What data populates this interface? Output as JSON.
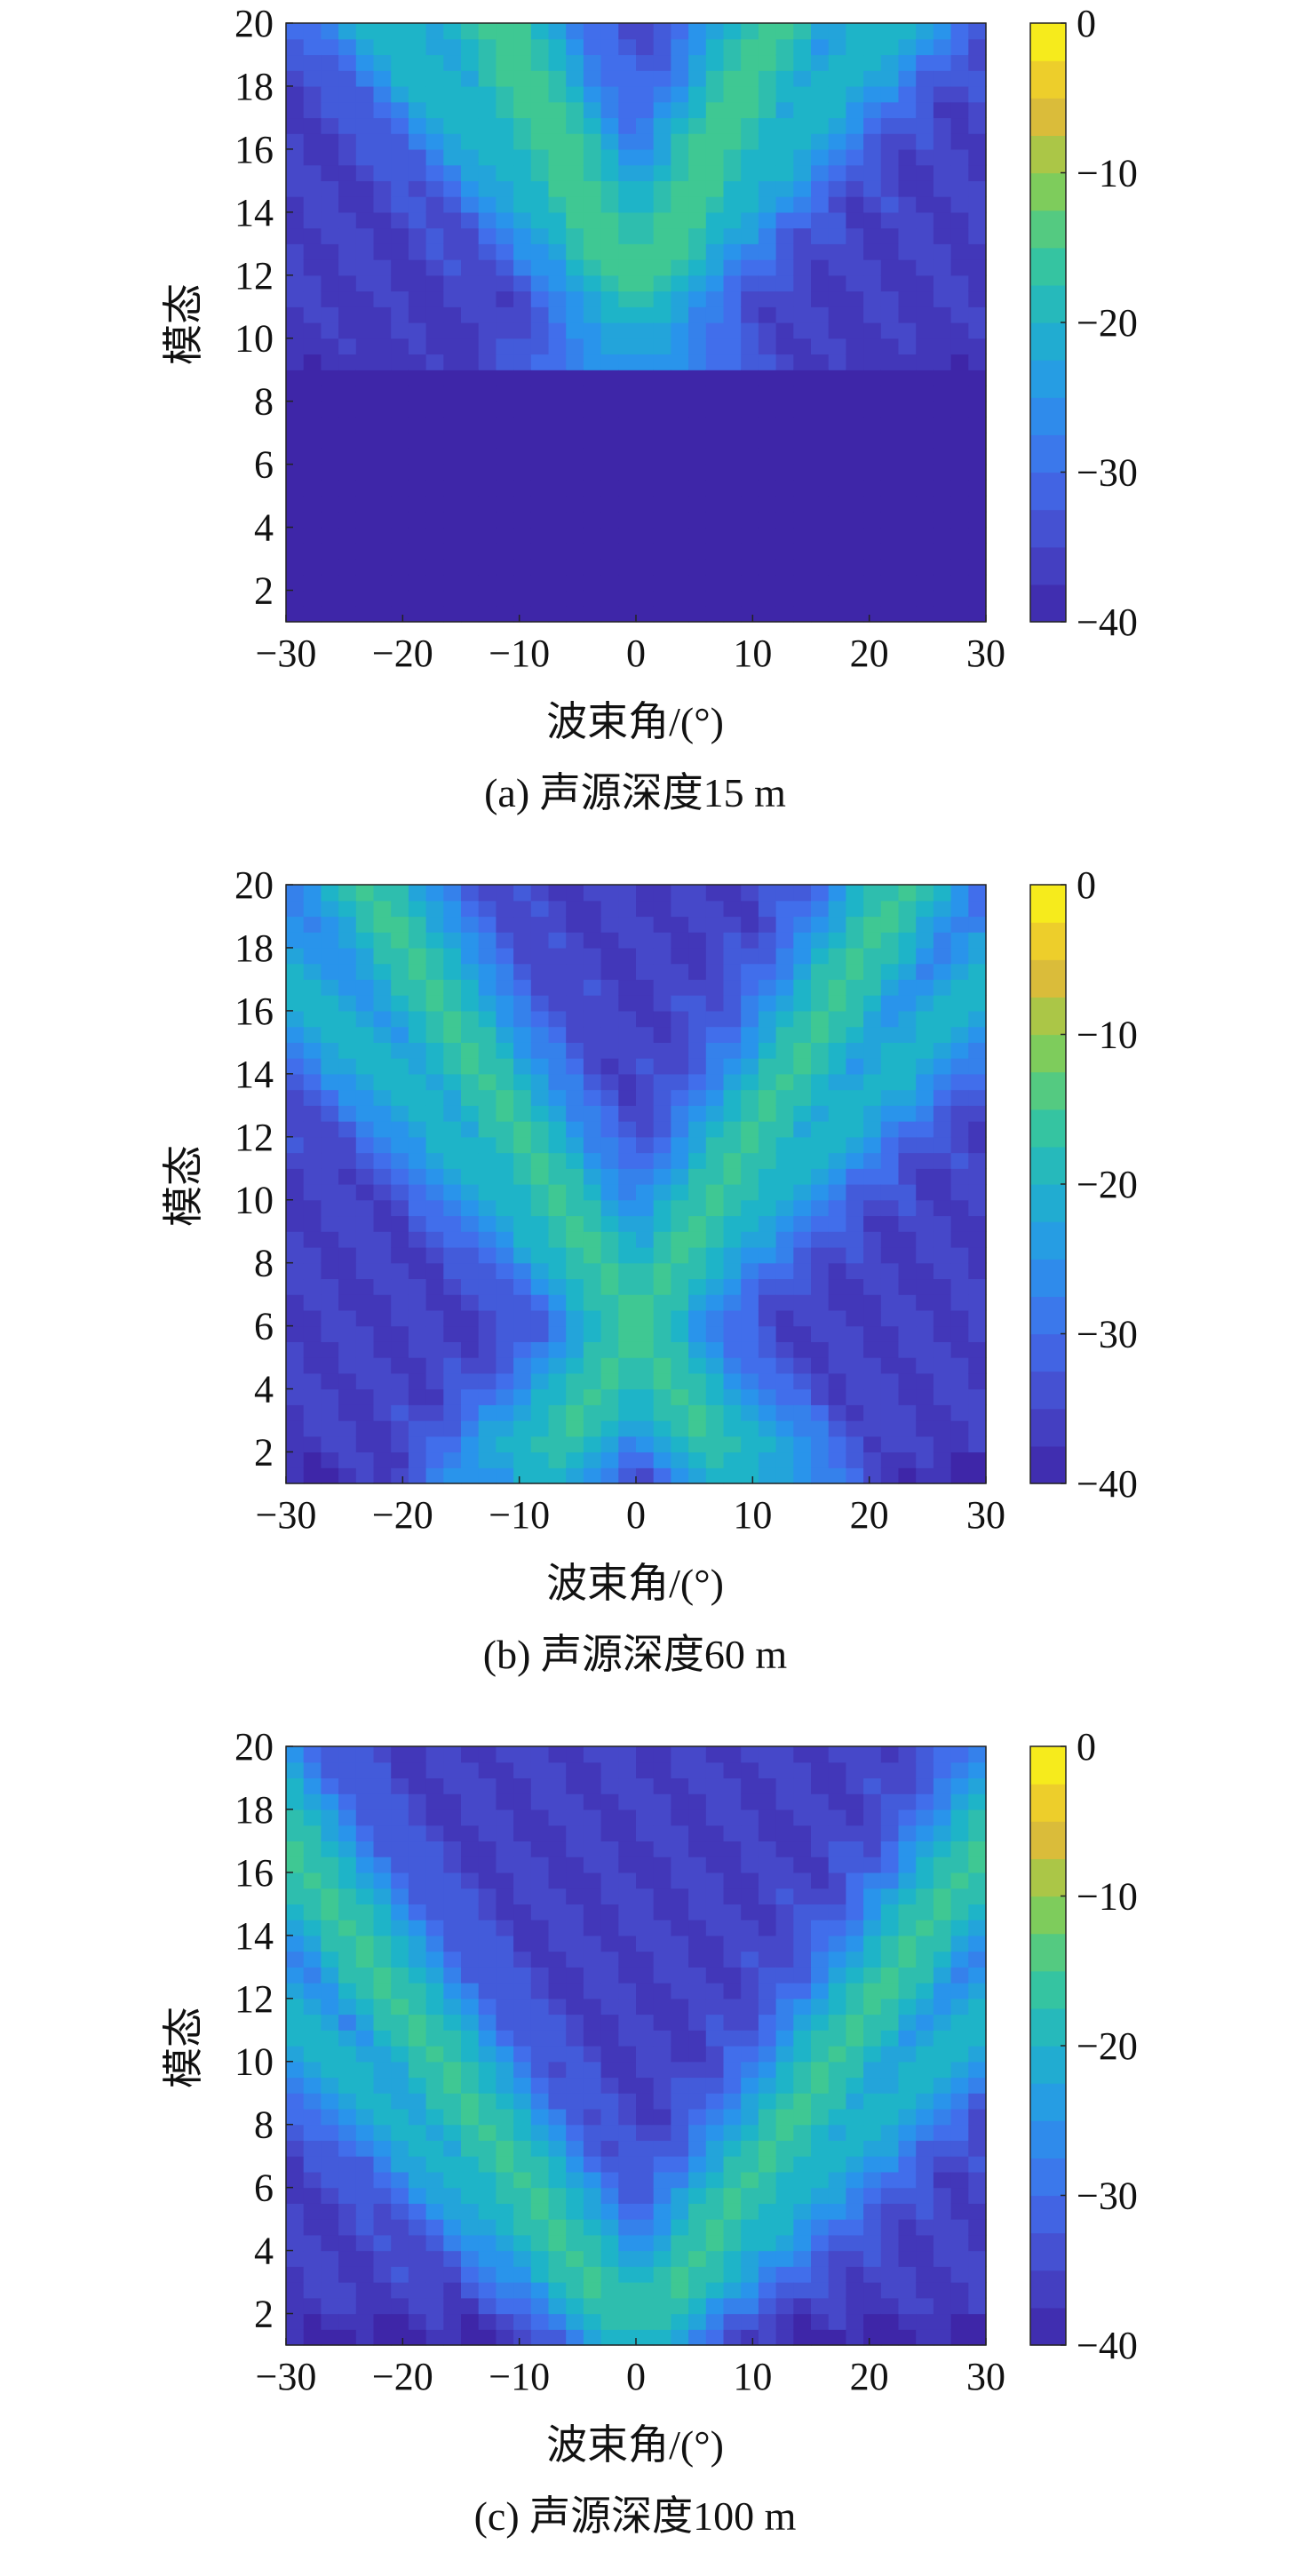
{
  "chart_data": [
    {
      "type": "heatmap",
      "caption": "(a) 声源深度15 m",
      "xlabel": "波束角/(°)",
      "ylabel": "模态",
      "xlim": [
        -30,
        30
      ],
      "ylim": [
        1,
        20
      ],
      "xticks": [
        "−30",
        "−20",
        "−10",
        "0",
        "10",
        "20",
        "30"
      ],
      "yticks": [
        "2",
        "4",
        "6",
        "8",
        "10",
        "12",
        "14",
        "16",
        "18",
        "20"
      ],
      "colorbar": {
        "range": [
          -40,
          0
        ],
        "ticks": [
          "0",
          "−10",
          "−20",
          "−30",
          "−40"
        ]
      },
      "pattern": {
        "cutoff_mode": 9,
        "floor_db": -40,
        "peak_db": -15,
        "ridges": [
          {
            "origin_mode": 11,
            "angle": 0,
            "slope": 0.6
          },
          {
            "origin_mode": 11,
            "angle": 0,
            "slope": -0.6
          },
          {
            "origin_mode": 11,
            "angle": 0,
            "slope": 1.6
          },
          {
            "origin_mode": 11,
            "angle": 0,
            "slope": -1.6
          }
        ]
      }
    },
    {
      "type": "heatmap",
      "caption": "(b) 声源深度60 m",
      "xlabel": "波束角/(°)",
      "ylabel": "模态",
      "xlim": [
        -30,
        30
      ],
      "ylim": [
        1,
        20
      ],
      "xticks": [
        "−30",
        "−20",
        "−10",
        "0",
        "10",
        "20",
        "30"
      ],
      "yticks": [
        "2",
        "4",
        "6",
        "8",
        "10",
        "12",
        "14",
        "16",
        "18",
        "20"
      ],
      "colorbar": {
        "range": [
          -40,
          0
        ],
        "ticks": [
          "0",
          "−10",
          "−20",
          "−30",
          "−40"
        ]
      },
      "pattern": {
        "cutoff_mode": 0,
        "floor_db": -40,
        "peak_db": -16,
        "ridges": [
          {
            "origin_mode": 6,
            "angle": 0,
            "slope": 0.75
          },
          {
            "origin_mode": 6,
            "angle": 0,
            "slope": -0.75
          },
          {
            "origin_mode": 6,
            "angle": 0,
            "slope": 1.8
          },
          {
            "origin_mode": 6,
            "angle": 0,
            "slope": -1.8
          }
        ]
      }
    },
    {
      "type": "heatmap",
      "caption": "(c) 声源深度100 m",
      "xlabel": "波束角/(°)",
      "ylabel": "模态",
      "xlim": [
        -30,
        30
      ],
      "ylim": [
        1,
        20
      ],
      "xticks": [
        "−30",
        "−20",
        "−10",
        "0",
        "10",
        "20",
        "30"
      ],
      "yticks": [
        "2",
        "4",
        "6",
        "8",
        "10",
        "12",
        "14",
        "16",
        "18",
        "20"
      ],
      "colorbar": {
        "range": [
          -40,
          0
        ],
        "ticks": [
          "0",
          "−10",
          "−20",
          "−30",
          "−40"
        ]
      },
      "pattern": {
        "cutoff_mode": 0,
        "floor_db": -40,
        "peak_db": -16,
        "ridges": [
          {
            "origin_mode": 1,
            "angle": 0,
            "slope": 0.85
          },
          {
            "origin_mode": 1,
            "angle": 0,
            "slope": -0.85
          },
          {
            "origin_mode": 1,
            "angle": 0,
            "slope": 1.9
          },
          {
            "origin_mode": 1,
            "angle": 0,
            "slope": -1.9
          }
        ]
      }
    }
  ]
}
